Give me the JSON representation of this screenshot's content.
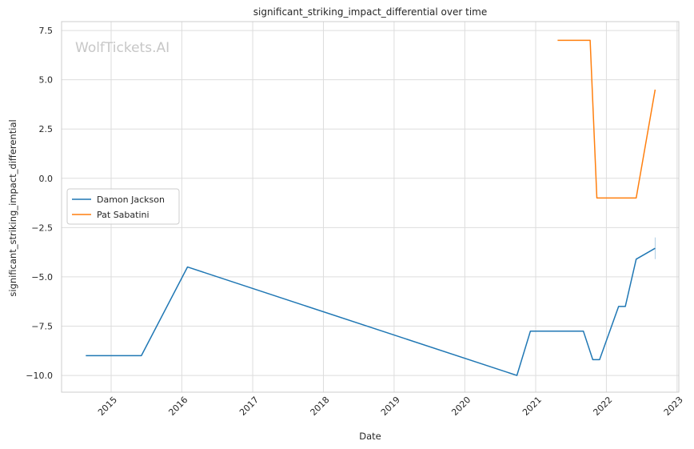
{
  "chart_data": {
    "type": "line",
    "title": "significant_striking_impact_differential over time",
    "xlabel": "Date",
    "ylabel": "significant_striking_impact_differential",
    "watermark": "WolfTickets.AI",
    "xlim": [
      "2014-04-20",
      "2023-01-10"
    ],
    "ylim": [
      -10.85,
      7.95
    ],
    "x_ticks": [
      "2015",
      "2016",
      "2017",
      "2018",
      "2019",
      "2020",
      "2021",
      "2022",
      "2023"
    ],
    "y_ticks": [
      -10.0,
      -7.5,
      -5.0,
      -2.5,
      0.0,
      2.5,
      5.0,
      7.5
    ],
    "y_tick_labels": [
      "−10.0",
      "−7.5",
      "−5.0",
      "−2.5",
      "0.0",
      "2.5",
      "5.0",
      "7.5"
    ],
    "grid": true,
    "legend_position": "center-left",
    "series": [
      {
        "name": "Damon Jackson",
        "color": "#1f77b4",
        "points": [
          [
            "2014-08-23",
            -9.0
          ],
          [
            "2015-06-06",
            -9.0
          ],
          [
            "2016-01-30",
            -4.5
          ],
          [
            "2020-09-26",
            -10.0
          ],
          [
            "2020-12-05",
            -7.75
          ],
          [
            "2021-09-04",
            -7.75
          ],
          [
            "2021-10-23",
            -9.2
          ],
          [
            "2021-11-27",
            -9.2
          ],
          [
            "2022-03-05",
            -6.5
          ],
          [
            "2022-04-09",
            -6.5
          ],
          [
            "2022-06-04",
            -4.1
          ],
          [
            "2022-09-10",
            -3.55
          ]
        ],
        "error_bar": {
          "x": "2022-09-10",
          "low": -4.1,
          "high": -3.0
        }
      },
      {
        "name": "Pat Sabatini",
        "color": "#ff7f0e",
        "points": [
          [
            "2021-04-24",
            7.0
          ],
          [
            "2021-10-09",
            7.0
          ],
          [
            "2021-11-13",
            -1.0
          ],
          [
            "2022-06-04",
            -1.0
          ],
          [
            "2022-09-10",
            4.5
          ]
        ]
      }
    ]
  }
}
